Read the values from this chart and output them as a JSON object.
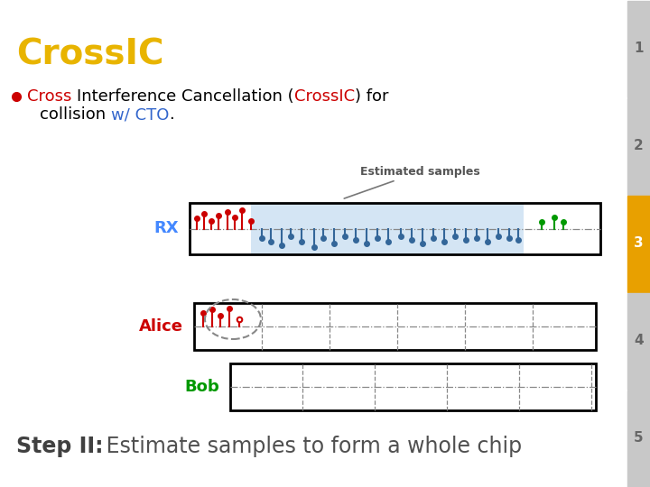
{
  "title": "CrossIC",
  "title_color": "#E8B400",
  "bg_color": "#FFFFFF",
  "sidebar_color": "#C8C8C8",
  "sidebar_highlight": "#E8A000",
  "rx_label": "RX",
  "alice_label": "Alice",
  "bob_label": "Bob",
  "label_rx_color": "#4488FF",
  "label_alice_color": "#CC0000",
  "label_bob_color": "#009900",
  "estimated_label": "Estimated samples",
  "sidebar_numbers": [
    "1",
    "2",
    "3",
    "4",
    "5"
  ],
  "sidebar_highlight_num": "3"
}
